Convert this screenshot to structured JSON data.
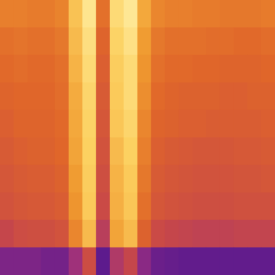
{
  "chart_data": {
    "type": "heatmap",
    "tick_labels": false,
    "zlim": [
      0,
      1
    ],
    "cells": [
      [
        0.64,
        0.64,
        0.63,
        0.63,
        0.65,
        0.82,
        0.95,
        0.6,
        0.9,
        0.96,
        0.75,
        0.66,
        0.64,
        0.64,
        0.63,
        0.63,
        0.62,
        0.62,
        0.62,
        0.63
      ],
      [
        0.6,
        0.61,
        0.6,
        0.6,
        0.62,
        0.8,
        0.92,
        0.56,
        0.87,
        0.93,
        0.72,
        0.62,
        0.6,
        0.6,
        0.6,
        0.59,
        0.59,
        0.58,
        0.58,
        0.59
      ],
      [
        0.58,
        0.59,
        0.58,
        0.58,
        0.6,
        0.78,
        0.9,
        0.54,
        0.85,
        0.9,
        0.7,
        0.6,
        0.58,
        0.58,
        0.57,
        0.57,
        0.56,
        0.56,
        0.56,
        0.57
      ],
      [
        0.56,
        0.57,
        0.57,
        0.57,
        0.59,
        0.76,
        0.88,
        0.52,
        0.84,
        0.9,
        0.68,
        0.58,
        0.56,
        0.55,
        0.55,
        0.55,
        0.54,
        0.54,
        0.55,
        0.55
      ],
      [
        0.54,
        0.56,
        0.56,
        0.56,
        0.58,
        0.75,
        0.87,
        0.5,
        0.83,
        0.88,
        0.66,
        0.56,
        0.55,
        0.54,
        0.54,
        0.53,
        0.53,
        0.53,
        0.53,
        0.54
      ],
      [
        0.52,
        0.54,
        0.55,
        0.55,
        0.57,
        0.74,
        0.86,
        0.48,
        0.8,
        0.86,
        0.64,
        0.54,
        0.52,
        0.51,
        0.5,
        0.5,
        0.5,
        0.51,
        0.51,
        0.52
      ],
      [
        0.5,
        0.52,
        0.53,
        0.53,
        0.55,
        0.72,
        0.85,
        0.46,
        0.78,
        0.84,
        0.62,
        0.52,
        0.5,
        0.49,
        0.48,
        0.48,
        0.48,
        0.49,
        0.49,
        0.5
      ],
      [
        0.48,
        0.5,
        0.51,
        0.51,
        0.53,
        0.7,
        0.84,
        0.44,
        0.77,
        0.83,
        0.6,
        0.5,
        0.48,
        0.47,
        0.46,
        0.46,
        0.46,
        0.47,
        0.47,
        0.47
      ],
      [
        0.42,
        0.45,
        0.46,
        0.46,
        0.48,
        0.66,
        0.8,
        0.38,
        0.74,
        0.8,
        0.55,
        0.44,
        0.42,
        0.41,
        0.4,
        0.4,
        0.4,
        0.41,
        0.41,
        0.41
      ],
      [
        0.22,
        0.22,
        0.22,
        0.2,
        0.2,
        0.3,
        0.45,
        0.15,
        0.35,
        0.42,
        0.25,
        0.18,
        0.17,
        0.16,
        0.16,
        0.16,
        0.16,
        0.16,
        0.16,
        0.16
      ]
    ]
  }
}
